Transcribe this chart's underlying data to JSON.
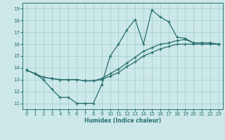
{
  "xlabel": "Humidex (Indice chaleur)",
  "ylabel": "",
  "bg_color": "#cce8e8",
  "grid_color": "#aad4d4",
  "line_color": "#2a7070",
  "xlim": [
    -0.5,
    23.5
  ],
  "ylim": [
    10.5,
    19.5
  ],
  "xticks": [
    0,
    1,
    2,
    3,
    4,
    5,
    6,
    7,
    8,
    9,
    10,
    11,
    12,
    13,
    14,
    15,
    16,
    17,
    18,
    19,
    20,
    21,
    22,
    23
  ],
  "yticks": [
    11,
    12,
    13,
    14,
    15,
    16,
    17,
    18,
    19
  ],
  "line1_x": [
    0,
    1,
    2,
    3,
    4,
    5,
    6,
    7,
    8,
    9,
    10,
    11,
    12,
    13,
    14,
    15,
    16,
    17,
    18,
    19,
    20,
    21,
    22,
    23
  ],
  "line1_y": [
    13.8,
    13.5,
    13.0,
    12.2,
    11.5,
    11.5,
    11.0,
    11.0,
    11.0,
    12.6,
    15.0,
    16.0,
    17.2,
    18.1,
    16.0,
    18.9,
    18.3,
    17.9,
    16.6,
    16.5,
    16.1,
    16.1,
    16.1,
    16.0
  ],
  "line2_x": [
    0,
    1,
    2,
    3,
    4,
    5,
    6,
    7,
    8,
    9,
    10,
    11,
    12,
    13,
    14,
    15,
    16,
    17,
    18,
    19,
    20,
    21,
    22,
    23
  ],
  "line2_y": [
    13.8,
    13.5,
    13.2,
    13.1,
    13.0,
    13.0,
    13.0,
    12.9,
    12.9,
    13.1,
    13.5,
    13.9,
    14.4,
    14.9,
    15.4,
    15.7,
    16.0,
    16.1,
    16.3,
    16.4,
    16.1,
    16.1,
    16.1,
    16.0
  ],
  "line3_x": [
    0,
    1,
    2,
    3,
    4,
    5,
    6,
    7,
    8,
    9,
    10,
    11,
    12,
    13,
    14,
    15,
    16,
    17,
    18,
    19,
    20,
    21,
    22,
    23
  ],
  "line3_y": [
    13.8,
    13.5,
    13.2,
    13.1,
    13.0,
    13.0,
    13.0,
    12.9,
    12.9,
    13.0,
    13.3,
    13.6,
    14.1,
    14.5,
    15.0,
    15.3,
    15.6,
    15.8,
    16.0,
    16.0,
    16.0,
    16.0,
    16.0,
    16.0
  ]
}
